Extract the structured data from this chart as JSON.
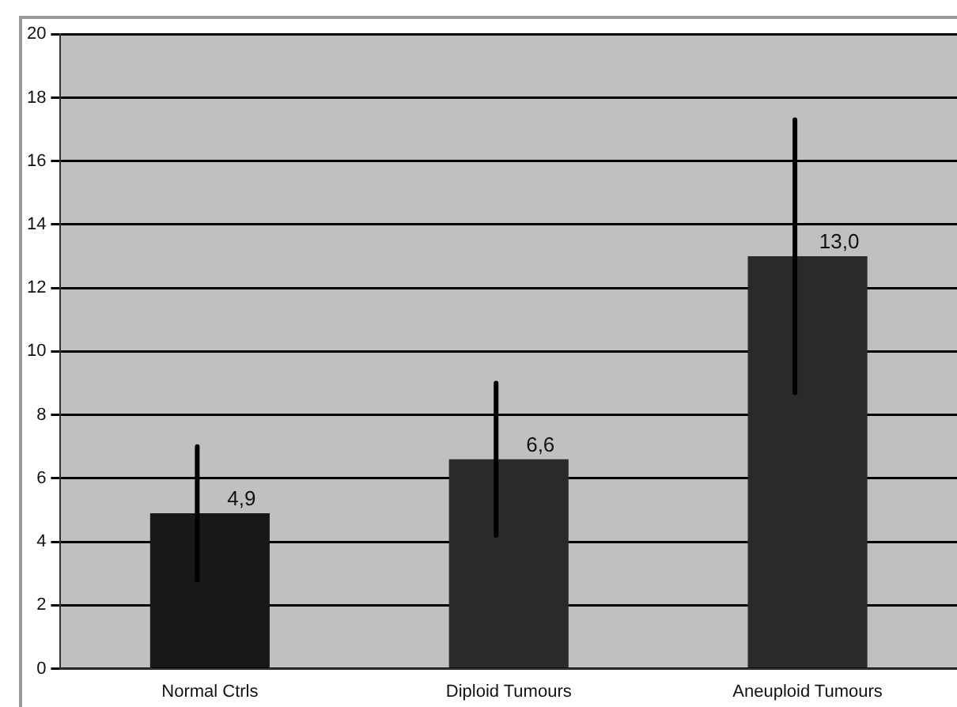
{
  "chart_data": {
    "type": "bar",
    "categories": [
      "Normal Ctrls",
      "Diploid Tumours",
      "Aneuploid Tumours"
    ],
    "values": [
      4.9,
      6.6,
      13.0
    ],
    "colors": [
      "#181818",
      "#2a2a2a",
      "#2a2a2a"
    ],
    "errors": [
      2.1,
      2.4,
      4.3
    ],
    "value_labels": [
      "4,9",
      "6,6",
      "13,0"
    ],
    "ylim": [
      0,
      20
    ],
    "yticks": [
      0,
      2,
      4,
      6,
      8,
      10,
      12,
      14,
      16,
      18,
      20
    ],
    "grid": "y"
  }
}
